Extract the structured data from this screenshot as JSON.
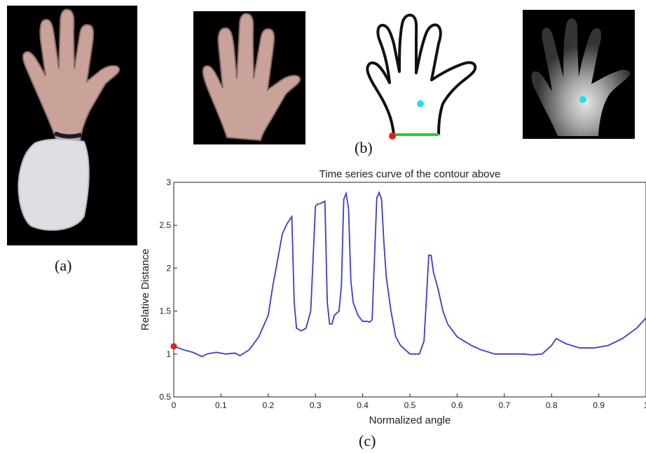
{
  "panels": {
    "a": {
      "label": "(a)"
    },
    "b": {
      "label": "(b)"
    },
    "c": {
      "label": "(c)"
    }
  },
  "colors": {
    "curve": "#3b3bd0",
    "start_point": "#e01e1e",
    "centroid": "#22e0e8",
    "wrist_line": "#2ecc2e",
    "contour": "#111111",
    "background_dark": "#000000"
  },
  "chart_data": {
    "type": "line",
    "title": "Time series curve of the contour above",
    "xlabel": "Normalized angle",
    "ylabel": "Relative Distance",
    "xlim": [
      0,
      1
    ],
    "ylim": [
      0.5,
      3
    ],
    "xticks": [
      "0",
      "0.1",
      "0.2",
      "0.3",
      "0.4",
      "0.5",
      "0.6",
      "0.7",
      "0.8",
      "0.9",
      "1"
    ],
    "yticks": [
      "0.5",
      "1",
      "1.5",
      "2",
      "2.5",
      "3"
    ],
    "grid": false,
    "start_marker": {
      "x": 0,
      "y": 1.09
    },
    "x": [
      0,
      0.02,
      0.04,
      0.06,
      0.07,
      0.09,
      0.11,
      0.13,
      0.14,
      0.16,
      0.18,
      0.2,
      0.21,
      0.22,
      0.23,
      0.24,
      0.25,
      0.255,
      0.26,
      0.27,
      0.28,
      0.29,
      0.3,
      0.305,
      0.31,
      0.32,
      0.325,
      0.33,
      0.335,
      0.34,
      0.35,
      0.355,
      0.36,
      0.365,
      0.37,
      0.375,
      0.38,
      0.39,
      0.4,
      0.41,
      0.415,
      0.42,
      0.43,
      0.435,
      0.44,
      0.445,
      0.45,
      0.46,
      0.47,
      0.48,
      0.5,
      0.52,
      0.53,
      0.54,
      0.545,
      0.55,
      0.555,
      0.56,
      0.57,
      0.58,
      0.6,
      0.63,
      0.65,
      0.68,
      0.7,
      0.72,
      0.74,
      0.76,
      0.78,
      0.79,
      0.8,
      0.81,
      0.83,
      0.86,
      0.89,
      0.92,
      0.95,
      0.98,
      1.0
    ],
    "y": [
      1.09,
      1.05,
      1.02,
      0.97,
      1.0,
      1.02,
      1.0,
      1.01,
      0.98,
      1.05,
      1.2,
      1.45,
      1.8,
      2.1,
      2.4,
      2.52,
      2.6,
      1.6,
      1.3,
      1.27,
      1.3,
      1.5,
      2.72,
      2.75,
      2.75,
      2.78,
      1.6,
      1.35,
      1.35,
      1.45,
      1.5,
      1.8,
      2.8,
      2.87,
      2.7,
      1.85,
      1.6,
      1.45,
      1.38,
      1.38,
      1.37,
      1.4,
      2.82,
      2.88,
      2.8,
      2.3,
      1.9,
      1.5,
      1.2,
      1.1,
      1.0,
      1.0,
      1.15,
      2.15,
      2.15,
      1.95,
      1.85,
      1.75,
      1.5,
      1.35,
      1.2,
      1.1,
      1.05,
      1.0,
      1.0,
      1.0,
      1.0,
      0.99,
      1.0,
      1.05,
      1.1,
      1.18,
      1.12,
      1.07,
      1.07,
      1.1,
      1.18,
      1.3,
      1.42
    ]
  }
}
